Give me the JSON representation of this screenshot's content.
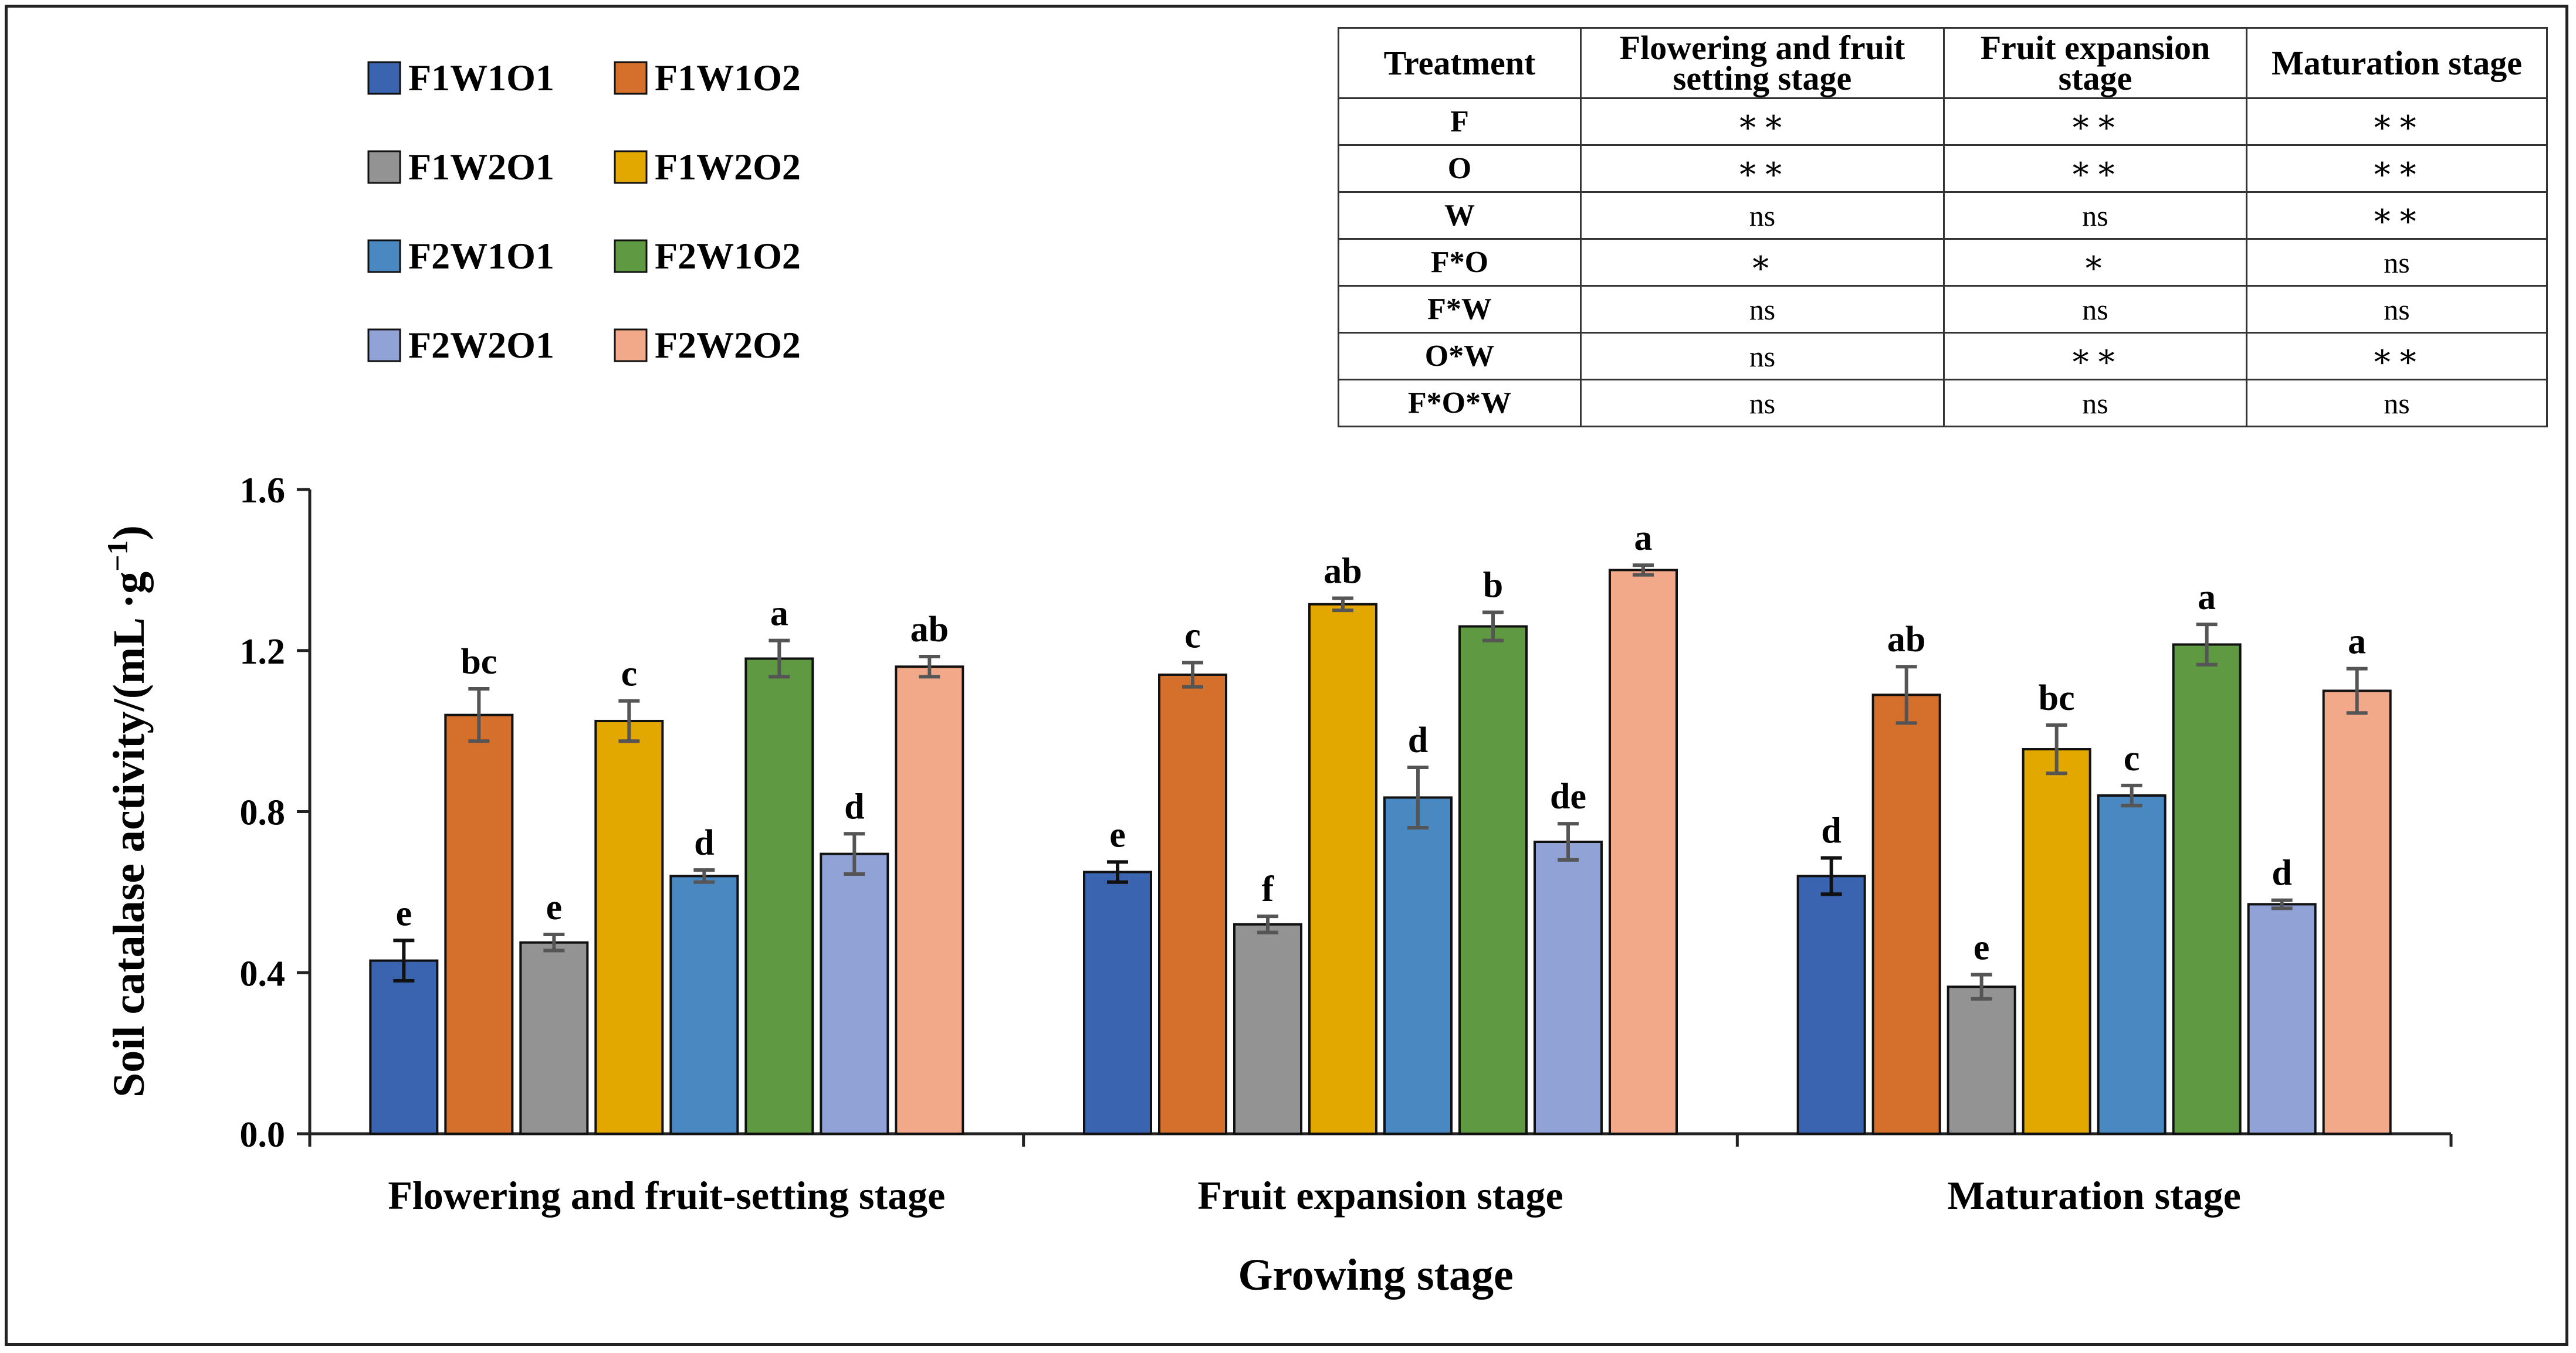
{
  "chart_data": {
    "type": "bar",
    "title": "",
    "xlabel": "Growing stage",
    "ylabel": "Soil catalase activity/(mL ·g",
    "ylabel_superscript": "−1",
    "ylabel_close": ")",
    "ylim": [
      0,
      1.6
    ],
    "yticks": [
      "0.0",
      "0.4",
      "0.8",
      "1.2",
      "1.6"
    ],
    "categories": [
      "Flowering and fruit-setting stage",
      "Fruit expansion stage",
      "Maturation stage"
    ],
    "legend_position": "top-left",
    "series": [
      {
        "name": "F1W1O1",
        "color": "#3b64b0",
        "values": [
          0.43,
          0.65,
          0.64
        ],
        "errors": [
          0.05,
          0.025,
          0.045
        ],
        "letters": [
          "e",
          "e",
          "d"
        ]
      },
      {
        "name": "F1W1O2",
        "color": "#d4702c",
        "values": [
          1.04,
          1.14,
          1.09
        ],
        "errors": [
          0.065,
          0.03,
          0.07
        ],
        "letters": [
          "bc",
          "c",
          "ab"
        ]
      },
      {
        "name": "F1W2O1",
        "color": "#939393",
        "values": [
          0.475,
          0.52,
          0.365
        ],
        "errors": [
          0.02,
          0.02,
          0.03
        ],
        "letters": [
          "e",
          "f",
          "e"
        ]
      },
      {
        "name": "F1W2O2",
        "color": "#e3a800",
        "values": [
          1.025,
          1.315,
          0.955
        ],
        "errors": [
          0.05,
          0.015,
          0.06
        ],
        "letters": [
          "c",
          "ab",
          "bc"
        ]
      },
      {
        "name": "F2W1O1",
        "color": "#4a88c2",
        "values": [
          0.64,
          0.835,
          0.84
        ],
        "errors": [
          0.015,
          0.075,
          0.025
        ],
        "letters": [
          "d",
          "d",
          "c"
        ]
      },
      {
        "name": "F2W1O2",
        "color": "#5f9a43",
        "values": [
          1.18,
          1.26,
          1.215
        ],
        "errors": [
          0.045,
          0.035,
          0.05
        ],
        "letters": [
          "a",
          "b",
          "a"
        ]
      },
      {
        "name": "F2W2O1",
        "color": "#91a3d6",
        "values": [
          0.695,
          0.725,
          0.57
        ],
        "errors": [
          0.05,
          0.045,
          0.01
        ],
        "letters": [
          "d",
          "de",
          "d"
        ]
      },
      {
        "name": "F2W2O2",
        "color": "#f2a98a",
        "values": [
          1.16,
          1.4,
          1.1
        ],
        "errors": [
          0.025,
          0.012,
          0.055
        ],
        "letters": [
          "ab",
          "a",
          "a"
        ]
      }
    ]
  },
  "significance_table": {
    "headers": [
      "Treatment",
      "Flowering and fruit setting stage",
      "Fruit expansion stage",
      "Maturation stage"
    ],
    "rows": [
      {
        "factor": "F",
        "values": [
          "∗∗",
          "∗∗",
          "∗∗"
        ]
      },
      {
        "factor": "O",
        "values": [
          "∗∗",
          "∗∗",
          "∗∗"
        ]
      },
      {
        "factor": "W",
        "values": [
          "ns",
          "ns",
          "∗∗"
        ]
      },
      {
        "factor": "F*O",
        "values": [
          "∗",
          "∗",
          "ns"
        ]
      },
      {
        "factor": "F*W",
        "values": [
          "ns",
          "ns",
          "ns"
        ]
      },
      {
        "factor": "O*W",
        "values": [
          "ns",
          "∗∗",
          "∗∗"
        ]
      },
      {
        "factor": "F*O*W",
        "values": [
          "ns",
          "ns",
          "ns"
        ]
      }
    ]
  }
}
